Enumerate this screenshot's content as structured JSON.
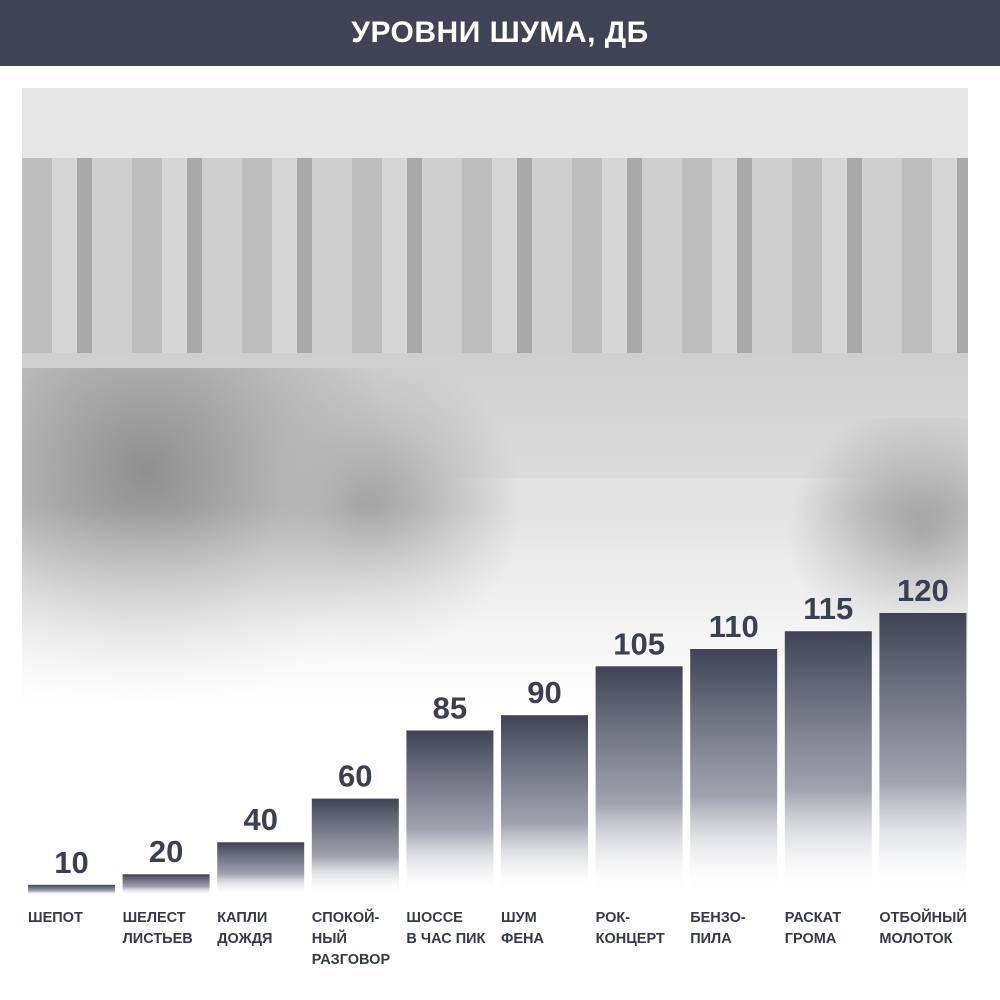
{
  "header": {
    "title": "УРОВНИ ШУМА, ДБ"
  },
  "colors": {
    "header_bg": "#3e4355",
    "bar_top": "#3e4355",
    "text": "#33384a"
  },
  "chart_data": {
    "type": "bar",
    "title": "УРОВНИ ШУМА, ДБ",
    "categories": [
      [
        "ШЕПОТ"
      ],
      [
        "ШЕЛЕСТ",
        "ЛИСТЬЕВ"
      ],
      [
        "КАПЛИ",
        "ДОЖДЯ"
      ],
      [
        "СПОКОЙ-",
        "НЫЙ",
        "РАЗГОВОР"
      ],
      [
        "ШОССЕ",
        "В ЧАС ПИК"
      ],
      [
        "ШУМ",
        "ФЕНА"
      ],
      [
        "РОК-",
        "КОНЦЕРТ"
      ],
      [
        "БЕНЗО-",
        "ПИЛА"
      ],
      [
        "РАСКАТ",
        "ГРОМА"
      ],
      [
        "ОТБОЙНЫЙ",
        "МОЛОТОК"
      ]
    ],
    "values": [
      10,
      20,
      40,
      60,
      85,
      90,
      105,
      110,
      115,
      120
    ],
    "xlabel": "",
    "ylabel": "",
    "grid": false,
    "data_labels": true
  }
}
